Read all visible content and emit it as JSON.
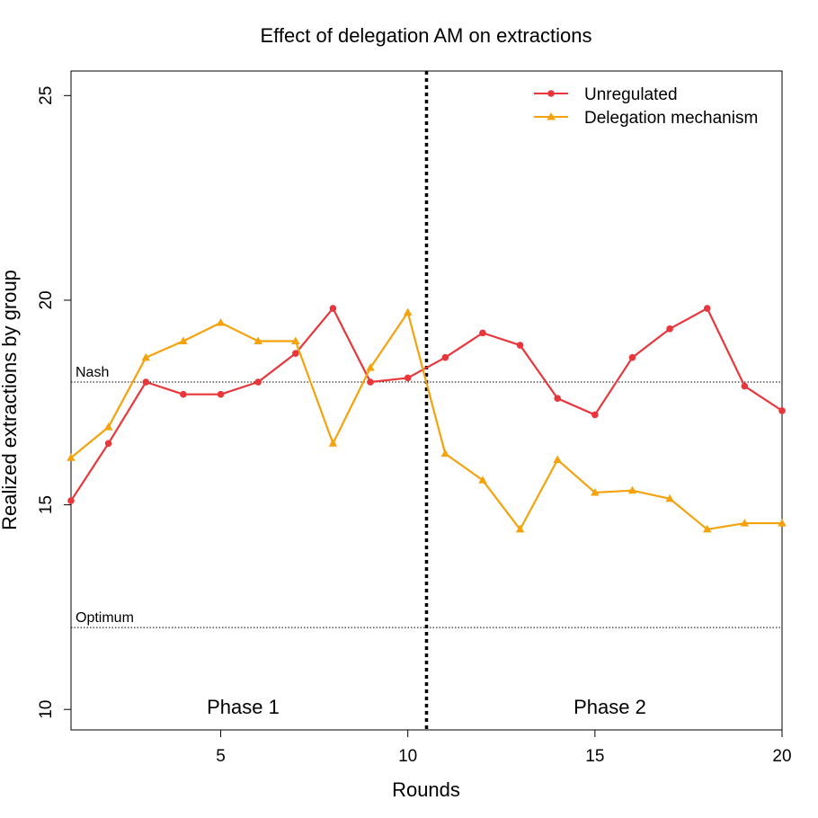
{
  "chart_data": {
    "type": "line",
    "title": "Effect of delegation AM on extractions",
    "xlabel": "Rounds",
    "ylabel": "Realized extractions by group",
    "xlim": [
      1,
      20
    ],
    "ylim": [
      9.5,
      25.6
    ],
    "x_ticks": [
      5,
      10,
      15,
      20
    ],
    "y_ticks": [
      10,
      15,
      20,
      25
    ],
    "grid": false,
    "legend_position": "top-right",
    "x": [
      1,
      2,
      3,
      4,
      5,
      6,
      7,
      8,
      9,
      10,
      11,
      12,
      13,
      14,
      15,
      16,
      17,
      18,
      19,
      20
    ],
    "series": [
      {
        "name": "Unregulated",
        "color": "#E8363A",
        "marker": "circle",
        "values": [
          15.1,
          16.5,
          18.0,
          17.7,
          17.7,
          18.0,
          18.7,
          19.8,
          18.0,
          18.1,
          18.6,
          19.2,
          18.9,
          17.6,
          17.2,
          18.6,
          19.3,
          19.8,
          17.9,
          17.3
        ]
      },
      {
        "name": "Delegation mechanism",
        "color": "#F5A20C",
        "marker": "triangle",
        "values": [
          16.15,
          16.9,
          18.6,
          19.0,
          19.45,
          19.0,
          19.0,
          16.5,
          18.35,
          19.7,
          16.25,
          15.6,
          14.4,
          16.1,
          15.3,
          15.35,
          15.15,
          14.4,
          14.55,
          14.55
        ]
      }
    ],
    "reference_lines": [
      {
        "label": "Nash",
        "y": 18.0
      },
      {
        "label": "Optimum",
        "y": 12.0
      }
    ],
    "phase_divider_x": 10.5,
    "phases": [
      {
        "label": "Phase 1",
        "x_center": 5.6
      },
      {
        "label": "Phase 2",
        "x_center": 15.4
      }
    ]
  }
}
